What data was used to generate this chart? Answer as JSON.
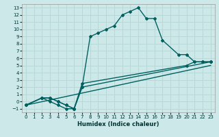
{
  "xlabel": "Humidex (Indice chaleur)",
  "bg_color": "#cce8e8",
  "grid_color": "#b8d8d8",
  "line_color": "#006060",
  "xlim": [
    -0.5,
    23.5
  ],
  "ylim": [
    -1.5,
    13.5
  ],
  "xticks": [
    0,
    1,
    2,
    3,
    4,
    5,
    6,
    7,
    8,
    9,
    10,
    11,
    12,
    13,
    14,
    15,
    16,
    17,
    18,
    19,
    20,
    21,
    22,
    23
  ],
  "yticks": [
    -1,
    0,
    1,
    2,
    3,
    4,
    5,
    6,
    7,
    8,
    9,
    10,
    11,
    12,
    13
  ],
  "curve1_x": [
    0,
    2,
    3,
    4,
    5,
    6,
    7,
    8,
    9,
    10,
    11,
    12,
    13,
    14,
    15,
    16,
    17,
    19,
    20,
    21,
    22,
    23
  ],
  "curve1_y": [
    -0.5,
    0.5,
    0.5,
    0.0,
    -0.5,
    -1.0,
    2.0,
    9.0,
    9.5,
    10.0,
    10.5,
    12.0,
    12.5,
    13.0,
    11.5,
    11.5,
    8.5,
    6.5,
    6.5,
    5.5,
    5.5,
    5.5
  ],
  "curve2_x": [
    0,
    2,
    3,
    4,
    5,
    6,
    7,
    20,
    21,
    22,
    23
  ],
  "curve2_y": [
    -0.5,
    0.5,
    0.5,
    0.0,
    -0.5,
    -1.0,
    2.5,
    5.0,
    5.5,
    5.5,
    5.5
  ],
  "curve3_x": [
    0,
    2,
    3,
    4,
    5,
    6,
    7,
    23
  ],
  "curve3_y": [
    -0.5,
    0.5,
    0.0,
    -0.5,
    -1.0,
    -1.0,
    2.0,
    5.5
  ],
  "curve4_x": [
    0,
    23
  ],
  "curve4_y": [
    -0.5,
    5.0
  ]
}
